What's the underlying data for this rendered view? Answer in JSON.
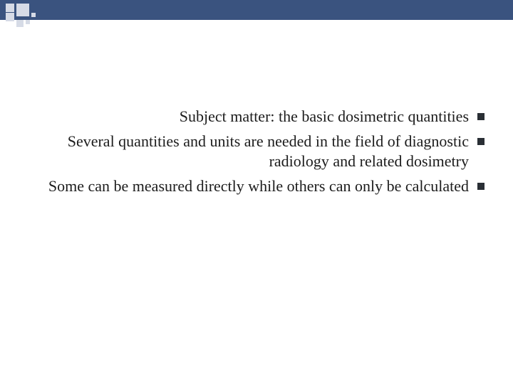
{
  "theme": {
    "top_bar_color": "#3a537f",
    "square_color": "#d6dbe6",
    "bullet_color": "#2a2f35",
    "text_color": "#1c1c1c",
    "background_color": "#ffffff",
    "font_family": "Georgia, 'Times New Roman', serif",
    "font_size_pt": 16
  },
  "bullets": [
    {
      "text": "Subject matter: the basic dosimetric quantities"
    },
    {
      "text": "Several quantities and units are needed in the field of diagnostic radiology and related dosimetry"
    },
    {
      "text": "Some can be measured directly while others can only be calculated"
    }
  ]
}
